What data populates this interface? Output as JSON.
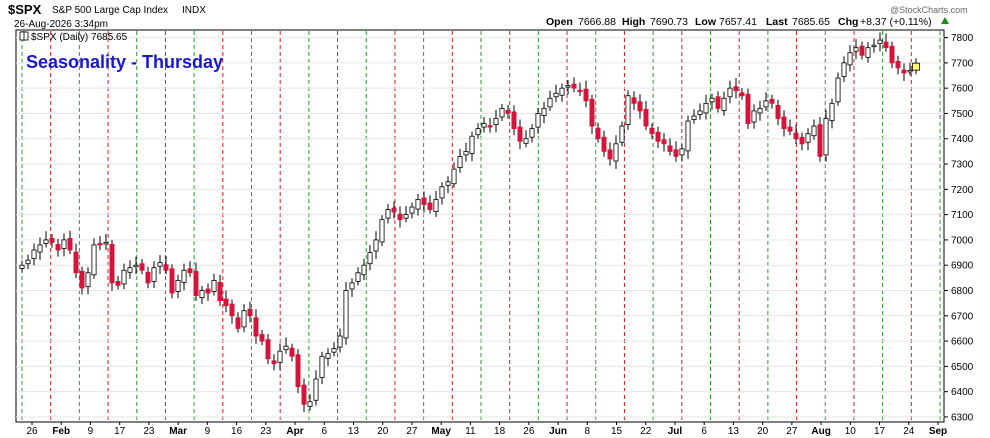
{
  "header": {
    "symbol": "$SPX",
    "name": "S&P 500 Large Cap Index",
    "exchange": "INDX",
    "datetime": "26-Aug-2026 3:34pm",
    "open_label": "Open",
    "open": "7666.88",
    "high_label": "High",
    "high": "7690.73",
    "low_label": "Low",
    "low": "7657.41",
    "last_label": "Last",
    "last": "7685.65",
    "chg_label": "Chg",
    "chg": "+8.37 (+0.11%)",
    "legend": "$SPX (Daily) 7685.65",
    "watermark": "@StockCharts.com"
  },
  "annotation": "Seasonality - Thursday",
  "colors": {
    "up_candle": "#ffffff",
    "down_candle": "#d4143a",
    "green_line": "#2a9a2a",
    "red_line": "#d02020",
    "annotation_text": "#1818d0",
    "chg_up": "#1a8a1a"
  },
  "chart_data": {
    "type": "candlestick",
    "y_ticks": [
      6300,
      6400,
      6500,
      6600,
      6700,
      6800,
      6900,
      7000,
      7100,
      7200,
      7300,
      7400,
      7500,
      7600,
      7700,
      7800
    ],
    "ylim": [
      6280,
      7830
    ],
    "x_tick_labels": [
      "26",
      "Feb",
      "9",
      "17",
      "23",
      "Mar",
      "9",
      "16",
      "23",
      "Apr",
      "6",
      "13",
      "20",
      "27",
      "May",
      "11",
      "18",
      "26",
      "Jun",
      "8",
      "15",
      "22",
      "Jul",
      "6",
      "13",
      "20",
      "27",
      "Aug",
      "10",
      "17",
      "24",
      "Sep"
    ],
    "grid": true,
    "legend_position": "top-left",
    "vertical_line_order": [
      "green",
      "red",
      "green",
      "red",
      "green",
      "red",
      "green",
      "red",
      "green",
      "red",
      "green",
      "red",
      "green",
      "red",
      "green",
      "red",
      "green",
      "red",
      "green",
      "red",
      "green",
      "red",
      "green",
      "red",
      "green",
      "red",
      "green",
      "red",
      "green",
      "red",
      "green",
      "red",
      "green",
      "red",
      "green",
      "red",
      "green",
      "red",
      "green",
      "red",
      "green",
      "red",
      "green",
      "red",
      "green",
      "red",
      "green",
      "red",
      "green",
      "red",
      "green",
      "red",
      "green",
      "red",
      "green",
      "red",
      "green",
      "red",
      "green",
      "red",
      "green",
      "red",
      "green",
      "red",
      "green",
      "red",
      "green",
      "red",
      "green",
      "red",
      "green",
      "red",
      "green",
      "red"
    ],
    "closes": [
      6900,
      6920,
      6960,
      6980,
      7000,
      6990,
      6960,
      7000,
      6960,
      6870,
      6810,
      6870,
      6980,
      6980,
      6990,
      6830,
      6820,
      6880,
      6890,
      6900,
      6880,
      6830,
      6890,
      6910,
      6880,
      6790,
      6840,
      6880,
      6870,
      6780,
      6800,
      6790,
      6840,
      6760,
      6740,
      6700,
      6650,
      6720,
      6700,
      6620,
      6600,
      6530,
      6510,
      6560,
      6580,
      6540,
      6420,
      6350,
      6360,
      6450,
      6540,
      6550,
      6570,
      6620,
      6800,
      6830,
      6870,
      6900,
      6950,
      7000,
      7080,
      7120,
      7110,
      7080,
      7100,
      7130,
      7160,
      7140,
      7120,
      7160,
      7210,
      7230,
      7280,
      7330,
      7350,
      7410,
      7440,
      7460,
      7450,
      7480,
      7520,
      7500,
      7440,
      7390,
      7400,
      7440,
      7500,
      7520,
      7560,
      7580,
      7600,
      7610,
      7600,
      7590,
      7550,
      7450,
      7400,
      7350,
      7320,
      7380,
      7450,
      7570,
      7540,
      7510,
      7450,
      7420,
      7390,
      7380,
      7350,
      7330,
      7360,
      7470,
      7490,
      7510,
      7540,
      7560,
      7520,
      7560,
      7600,
      7590,
      7570,
      7460,
      7510,
      7520,
      7550,
      7540,
      7480,
      7440,
      7430,
      7400,
      7380,
      7420,
      7450,
      7330,
      7480,
      7540,
      7640,
      7700,
      7740,
      7760,
      7730,
      7760,
      7770,
      7790,
      7760,
      7700,
      7680,
      7660,
      7670,
      7685
    ]
  }
}
